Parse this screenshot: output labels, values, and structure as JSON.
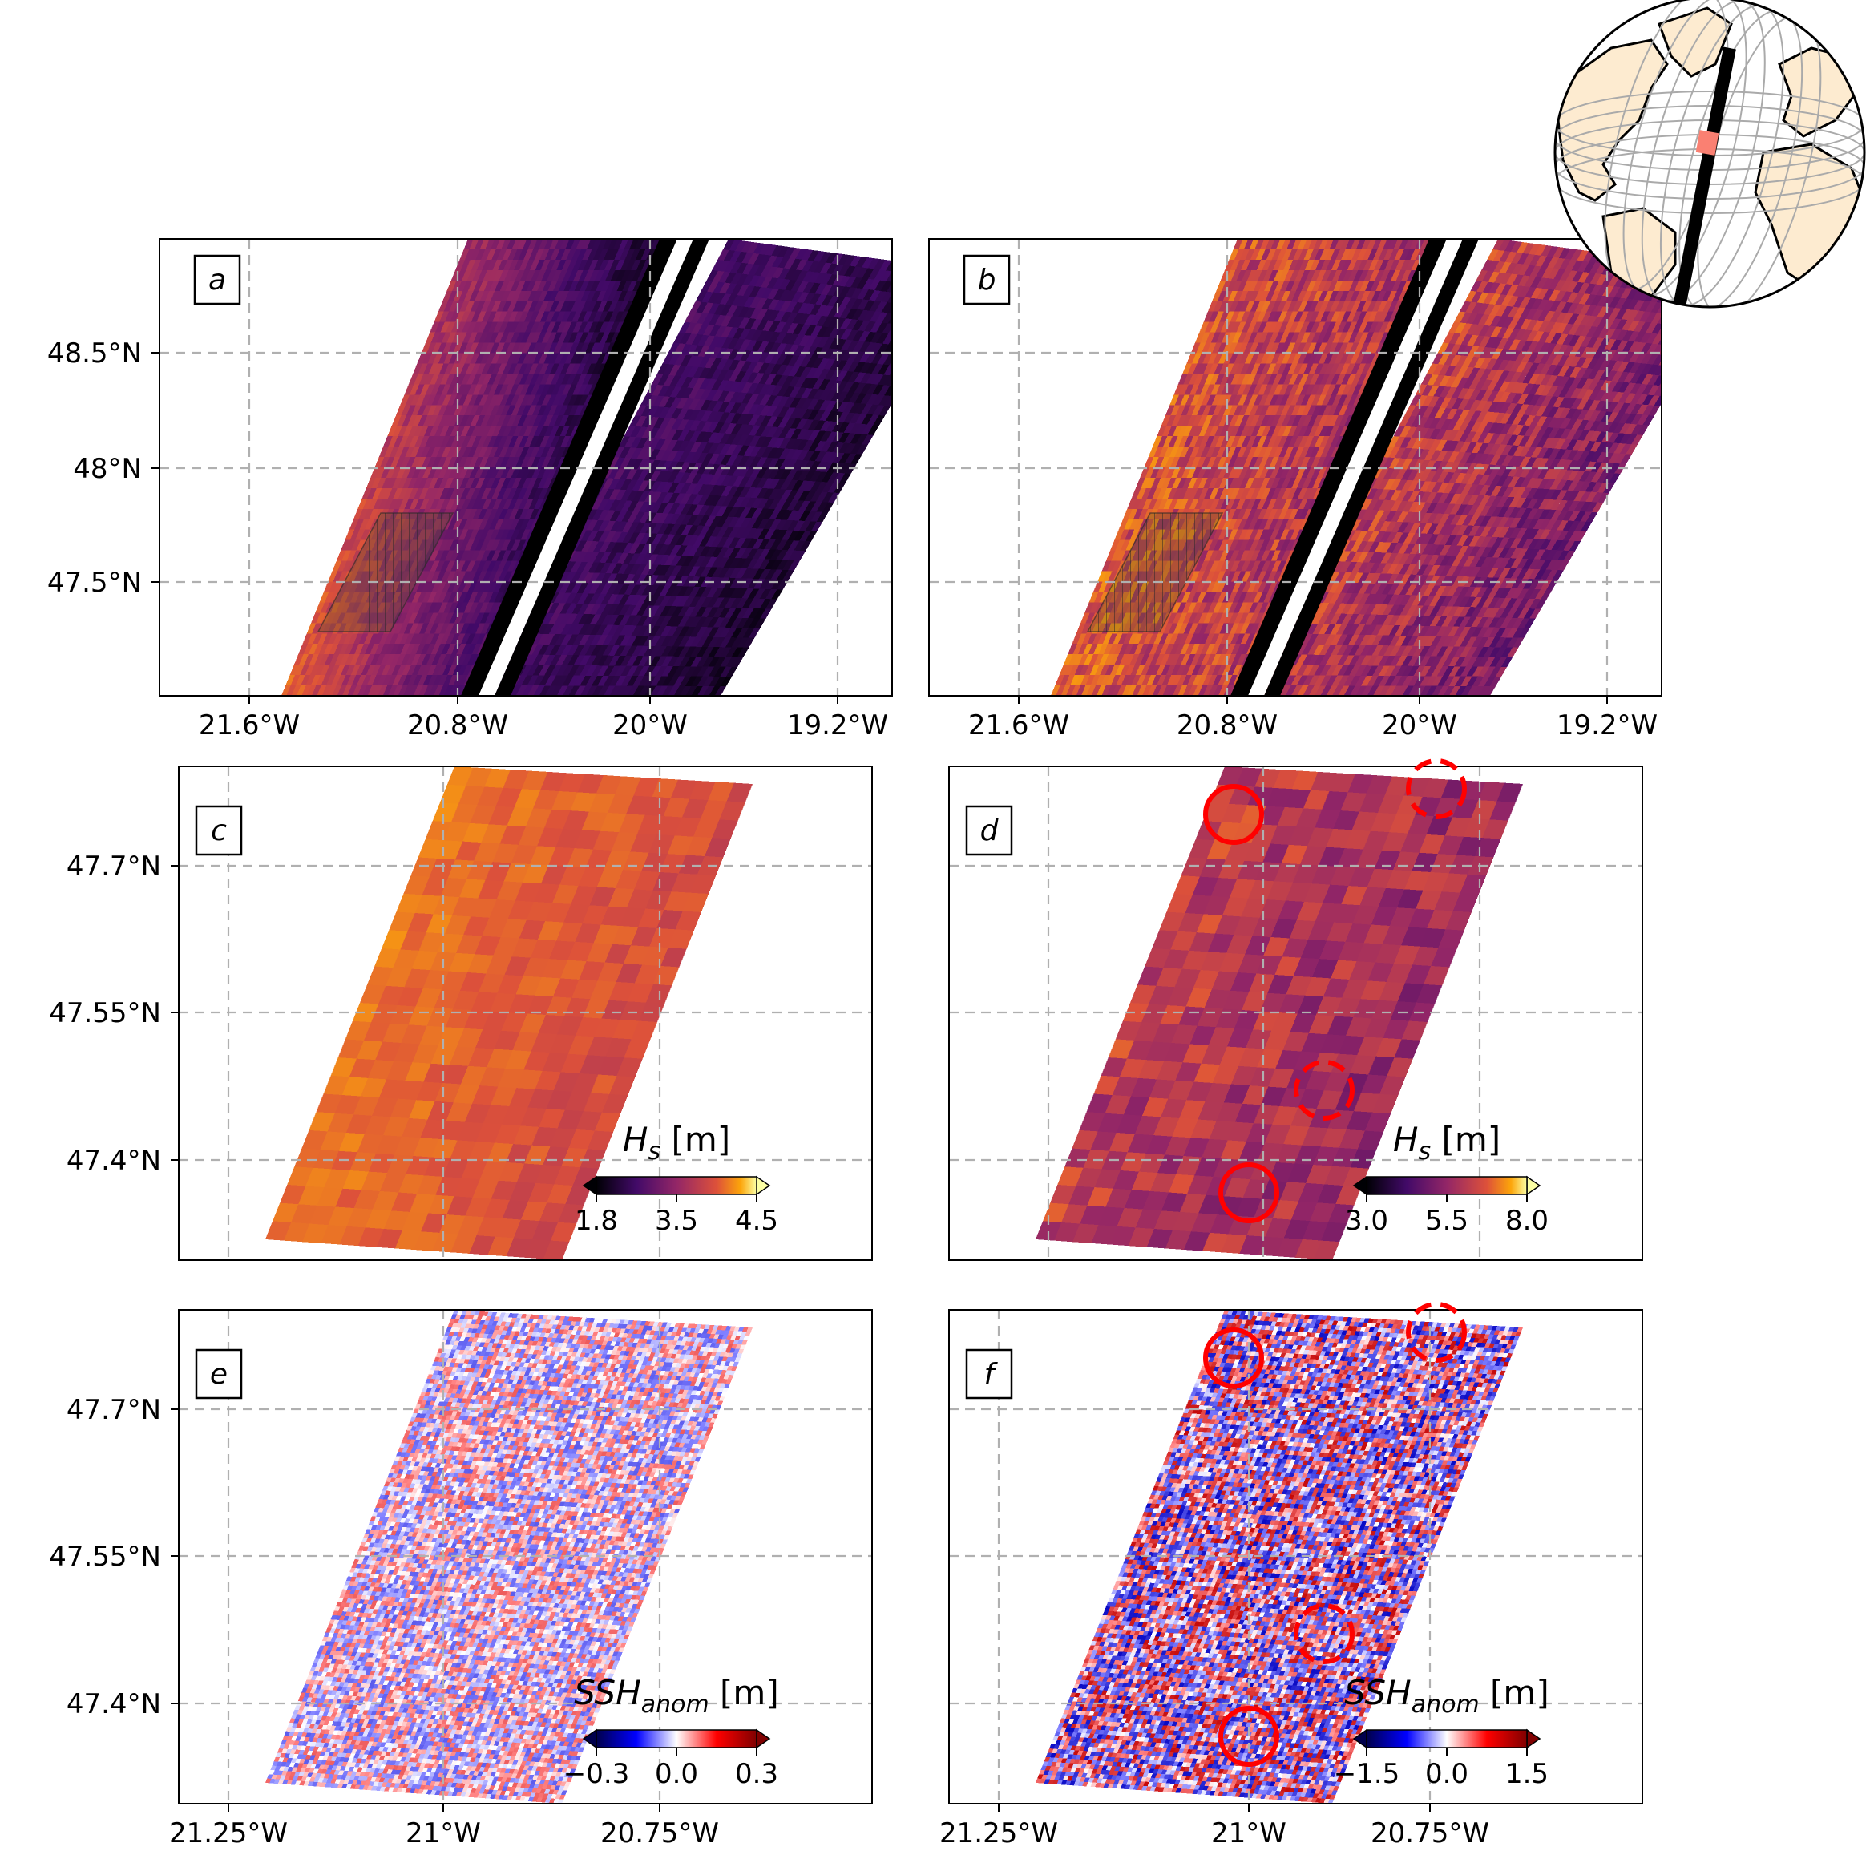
{
  "colors": {
    "frame": "#000000",
    "grid": "#b0b0b0",
    "highlight_circle": "#ff0000",
    "globe_land": "#fdebd0",
    "track": "#000000",
    "track_highlight": "#fa8072"
  },
  "panels": {
    "a": {
      "label": "a",
      "colormap": "inferno",
      "x_ticks": [
        "21.6°W",
        "20.8°W",
        "20°W",
        "19.2°W"
      ],
      "y_ticks": [
        "48.5°N",
        "48°N",
        "47.5°N"
      ]
    },
    "b": {
      "label": "b",
      "colormap": "inferno",
      "x_ticks": [
        "21.6°W",
        "20.8°W",
        "20°W",
        "19.2°W"
      ]
    },
    "c": {
      "label": "c",
      "colormap": "inferno",
      "y_ticks": [
        "47.7°N",
        "47.55°N",
        "47.4°N"
      ],
      "colorbar": {
        "title_main": "H",
        "title_sub": "s",
        "title_unit": " [m]",
        "ticks": [
          "1.8",
          "3.5",
          "4.5"
        ]
      }
    },
    "d": {
      "label": "d",
      "colormap": "inferno",
      "colorbar": {
        "title_main": "H",
        "title_sub": "s",
        "title_unit": " [m]",
        "ticks": [
          "3.0",
          "5.5",
          "8.0"
        ]
      }
    },
    "e": {
      "label": "e",
      "colormap": "seismic",
      "x_ticks": [
        "21.25°W",
        "21°W",
        "20.75°W"
      ],
      "y_ticks": [
        "47.7°N",
        "47.55°N",
        "47.4°N"
      ],
      "colorbar": {
        "title_main": "SSH",
        "title_sub": "anom",
        "title_unit": " [m]",
        "ticks": [
          "−0.3",
          "0.0",
          "0.3"
        ]
      }
    },
    "f": {
      "label": "f",
      "colormap": "seismic",
      "x_ticks": [
        "21.25°W",
        "21°W",
        "20.75°W"
      ],
      "colorbar": {
        "title_main": "SSH",
        "title_sub": "anom",
        "title_unit": " [m]",
        "ticks": [
          "−1.5",
          "0.0",
          "1.5"
        ]
      }
    }
  },
  "inset_globe": {
    "name": "globe-inset",
    "region": "North Atlantic",
    "graticule": true,
    "track_shown": true
  },
  "annotations": {
    "solid_circles": 2,
    "dashed_circles": 2
  }
}
